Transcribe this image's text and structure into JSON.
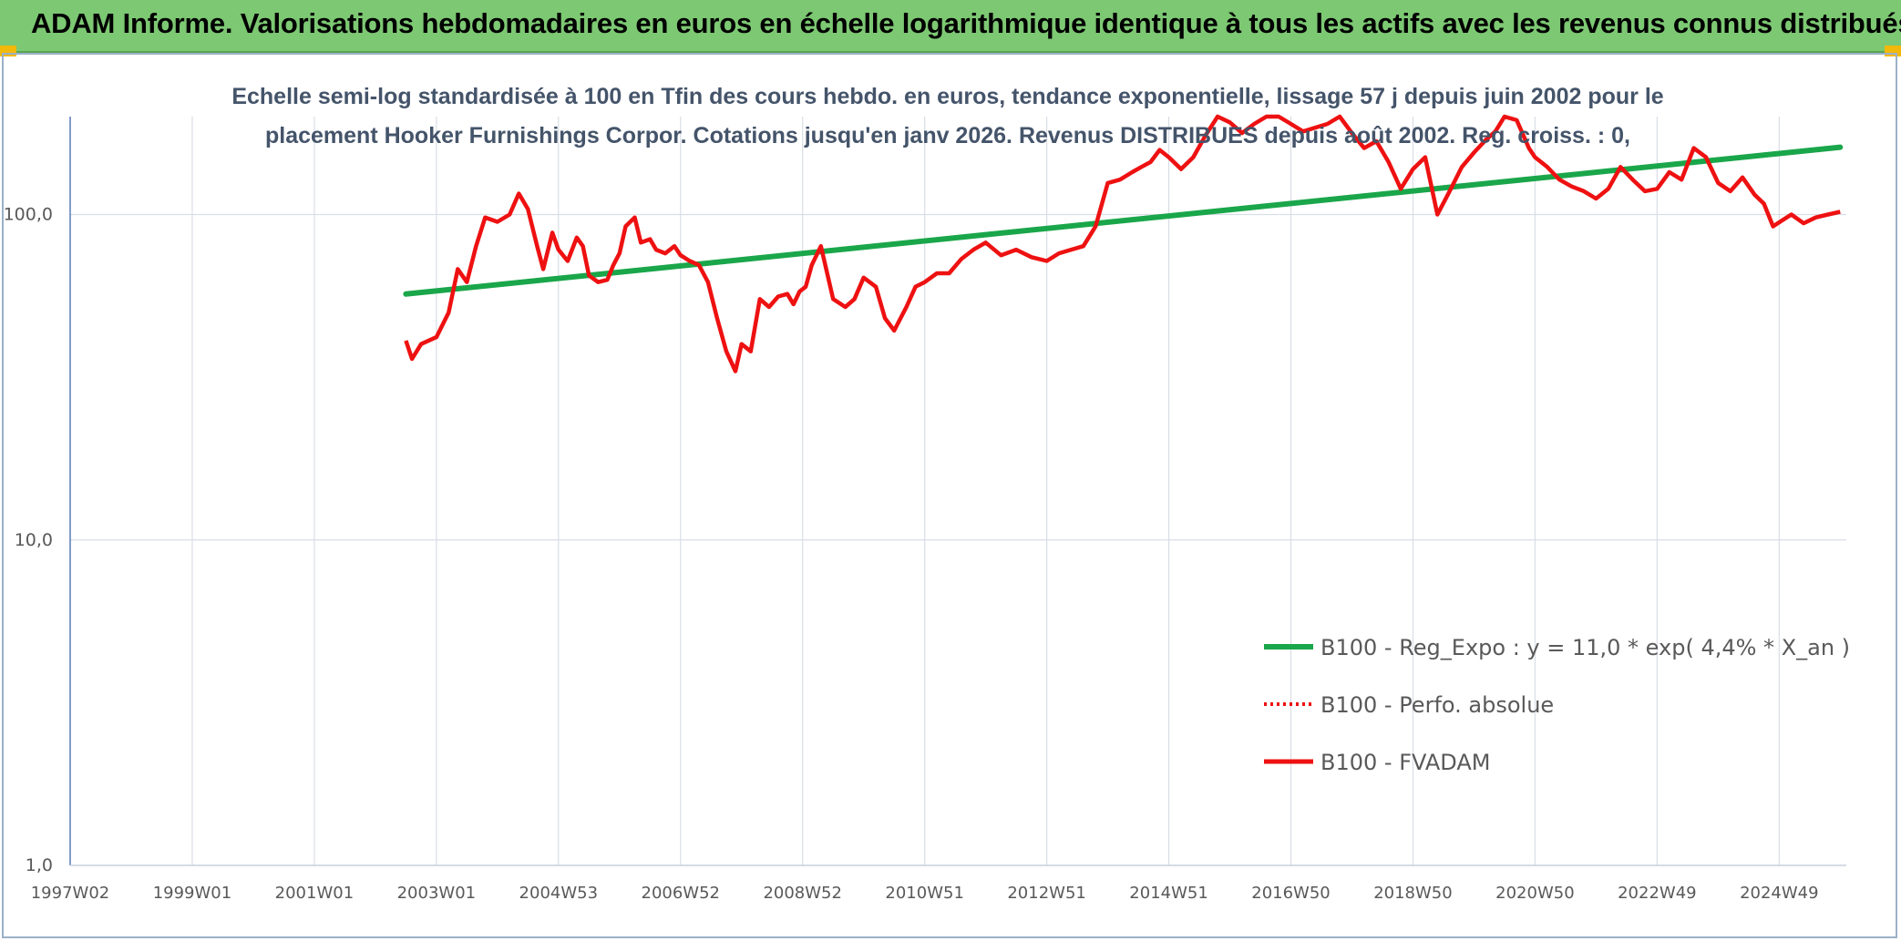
{
  "banner": {
    "title": "ADAM Informe. Valorisations hebdomadaires en euros en échelle logarithmique identique à tous les actifs avec les revenus connus distribués"
  },
  "colors": {
    "banner_bg": "#7dc873",
    "accent_corner": "#f2b90a",
    "trend": "#1aa64a",
    "series": "#ee1111",
    "subtitle": "#44546a",
    "grid": "#d9dee6"
  },
  "chart_data": {
    "type": "line",
    "title": [
      "Echelle semi-log standardisée à 100 en Tfin des cours hebdo. en euros, tendance exponentielle, lissage 57 j depuis juin 2002 pour le",
      "placement Hooker Furnishings Corpor. Cotations jusqu'en janv 2026. Revenus DISTRIBUES depuis août 2002. Reg. croiss. : 0,"
    ],
    "y_scale": "log",
    "ylim": [
      1,
      200
    ],
    "y_ticks": [
      1,
      10,
      100
    ],
    "y_tick_labels": [
      "1,0",
      "10,0",
      "100,0"
    ],
    "xlim": [
      1997.0,
      2026.1
    ],
    "x_ticks": [
      1997.0,
      1999.0,
      2001.0,
      2003.0,
      2005.0,
      2007.0,
      2009.0,
      2011.0,
      2013.0,
      2015.0,
      2017.0,
      2019.0,
      2021.0,
      2023.0,
      2025.0
    ],
    "x_tick_labels": [
      "1997W02",
      "1999W01",
      "2001W01",
      "2003W01",
      "2004W53",
      "2006W52",
      "2008W52",
      "2010W51",
      "2012W51",
      "2014W51",
      "2016W50",
      "2018W50",
      "2020W50",
      "2022W49",
      "2024W49"
    ],
    "grid": true,
    "legend_position": "lower-right",
    "series": [
      {
        "name": "B100 - Reg_Expo : y = 11,0 * exp( 4,4% *  X_an )",
        "style": "solid-thick",
        "color": "#1aa64a",
        "x": [
          2002.5,
          2026.0
        ],
        "y": [
          57,
          161
        ]
      },
      {
        "name": "B100 - Perfo. absolue",
        "style": "dotted",
        "color": "#ee1111",
        "x": [],
        "y": []
      },
      {
        "name": "B100 - FVADAM",
        "style": "solid",
        "color": "#ee1111",
        "x": [
          2002.5,
          2002.6,
          2002.75,
          2003.0,
          2003.2,
          2003.35,
          2003.5,
          2003.65,
          2003.8,
          2004.0,
          2004.2,
          2004.35,
          2004.5,
          2004.65,
          2004.75,
          2004.9,
          2005.0,
          2005.15,
          2005.3,
          2005.4,
          2005.5,
          2005.65,
          2005.8,
          2005.9,
          2006.0,
          2006.1,
          2006.25,
          2006.35,
          2006.5,
          2006.6,
          2006.75,
          2006.9,
          2007.0,
          2007.15,
          2007.3,
          2007.45,
          2007.6,
          2007.75,
          2007.9,
          2008.0,
          2008.15,
          2008.3,
          2008.45,
          2008.6,
          2008.75,
          2008.85,
          2008.95,
          2009.05,
          2009.15,
          2009.3,
          2009.5,
          2009.7,
          2009.85,
          2010.0,
          2010.2,
          2010.35,
          2010.5,
          2010.7,
          2010.85,
          2011.0,
          2011.2,
          2011.4,
          2011.6,
          2011.8,
          2012.0,
          2012.25,
          2012.5,
          2012.75,
          2013.0,
          2013.2,
          2013.4,
          2013.6,
          2013.8,
          2014.0,
          2014.2,
          2014.4,
          2014.55,
          2014.7,
          2014.85,
          2015.0,
          2015.2,
          2015.4,
          2015.6,
          2015.8,
          2016.0,
          2016.2,
          2016.4,
          2016.6,
          2016.8,
          2017.0,
          2017.2,
          2017.4,
          2017.6,
          2017.8,
          2018.0,
          2018.2,
          2018.4,
          2018.6,
          2018.8,
          2019.0,
          2019.2,
          2019.4,
          2019.6,
          2019.8,
          2020.0,
          2020.2,
          2020.35,
          2020.5,
          2020.7,
          2020.9,
          2021.0,
          2021.2,
          2021.4,
          2021.6,
          2021.8,
          2022.0,
          2022.2,
          2022.4,
          2022.6,
          2022.8,
          2023.0,
          2023.2,
          2023.4,
          2023.6,
          2023.8,
          2024.0,
          2024.2,
          2024.4,
          2024.6,
          2024.75,
          2024.9,
          2025.05,
          2025.2,
          2025.4,
          2025.6,
          2025.8,
          2026.0
        ],
        "y": [
          41,
          36,
          40,
          42,
          50,
          68,
          62,
          80,
          98,
          95,
          100,
          116,
          104,
          80,
          68,
          88,
          78,
          72,
          85,
          80,
          65,
          62,
          63,
          70,
          76,
          92,
          98,
          82,
          84,
          78,
          76,
          80,
          75,
          72,
          70,
          62,
          48,
          38,
          33,
          40,
          38,
          55,
          52,
          56,
          57,
          53,
          58,
          60,
          70,
          80,
          55,
          52,
          55,
          64,
          60,
          48,
          44,
          52,
          60,
          62,
          66,
          66,
          73,
          78,
          82,
          75,
          78,
          74,
          72,
          76,
          78,
          80,
          92,
          125,
          128,
          135,
          140,
          145,
          158,
          150,
          138,
          150,
          175,
          200,
          192,
          178,
          190,
          205,
          200,
          190,
          180,
          185,
          190,
          200,
          178,
          160,
          168,
          145,
          120,
          138,
          150,
          100,
          118,
          140,
          155,
          170,
          180,
          205,
          195,
          160,
          150,
          140,
          128,
          122,
          118,
          112,
          120,
          140,
          128,
          118,
          120,
          135,
          128,
          160,
          150,
          125,
          118,
          130,
          115,
          108,
          92,
          96,
          100,
          94,
          98,
          100,
          102
        ]
      }
    ]
  }
}
